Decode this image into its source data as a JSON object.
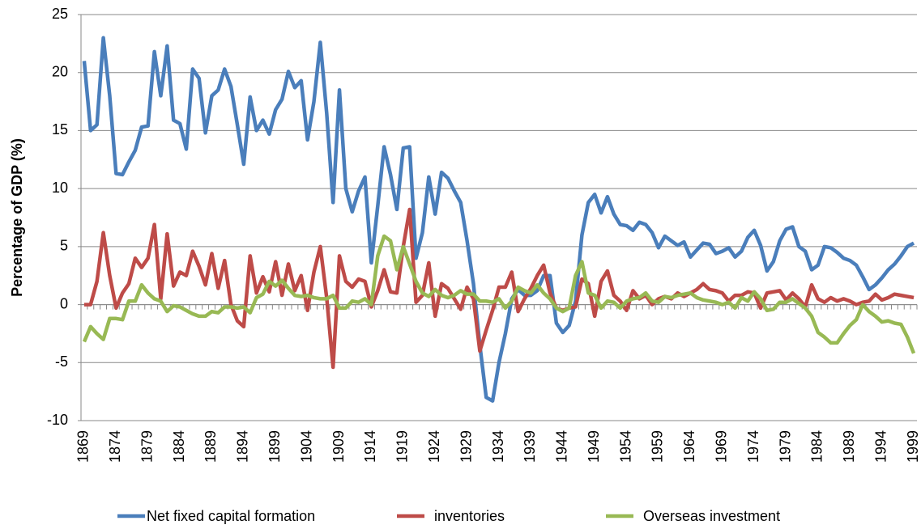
{
  "chart_data": {
    "type": "line",
    "y_label": "Percentage of GDP (%)",
    "categories": [
      "1869",
      null,
      null,
      null,
      null,
      "1874",
      null,
      null,
      null,
      null,
      "1879",
      null,
      null,
      null,
      null,
      "1884",
      null,
      null,
      null,
      null,
      "1889",
      null,
      null,
      null,
      null,
      "1894",
      null,
      null,
      null,
      null,
      "1899",
      null,
      null,
      null,
      null,
      "1904",
      null,
      null,
      null,
      null,
      "1909",
      null,
      null,
      null,
      null,
      "1914",
      null,
      null,
      null,
      null,
      "1919",
      null,
      null,
      null,
      null,
      "1924",
      null,
      null,
      null,
      null,
      "1929",
      null,
      null,
      null,
      null,
      "1934",
      null,
      null,
      null,
      null,
      "1939",
      null,
      null,
      null,
      null,
      "1944",
      null,
      null,
      null,
      null,
      "1949",
      null,
      null,
      null,
      null,
      "1954",
      null,
      null,
      null,
      null,
      "1959",
      null,
      null,
      null,
      null,
      "1964",
      null,
      null,
      null,
      null,
      "1969",
      null,
      null,
      null,
      null,
      "1974",
      null,
      null,
      null,
      null,
      "1979",
      null,
      null,
      null,
      null,
      "1984",
      null,
      null,
      null,
      null,
      "1989",
      null,
      null,
      null,
      null,
      "1994",
      null,
      null,
      null,
      null,
      "1999"
    ],
    "series": [
      {
        "name": "Net fixed capital formation",
        "color": "#4a7ebb",
        "values": [
          21,
          15,
          15.5,
          23,
          18,
          11.3,
          11.2,
          12.3,
          13.3,
          15.3,
          15.4,
          21.8,
          18,
          22.3,
          15.9,
          15.6,
          13.4,
          20.3,
          19.5,
          14.8,
          18,
          18.5,
          20.3,
          18.8,
          15.5,
          12.1,
          17.9,
          15,
          15.9,
          14.7,
          16.8,
          17.7,
          20.1,
          18.7,
          19.3,
          14.2,
          17.5,
          22.6,
          16.5,
          8.8,
          18.5,
          10,
          8,
          9.8,
          11,
          3.6,
          8.5,
          13.6,
          11.2,
          8.2,
          13.5,
          13.6,
          4,
          6.2,
          11,
          7.8,
          11.4,
          10.9,
          9.8,
          8.8,
          5.5,
          1.8,
          -3.5,
          -8,
          -8.3,
          -5,
          -2.5,
          0.5,
          1.3,
          0.8,
          0.8,
          1.2,
          2.5,
          2.5,
          -1.6,
          -2.4,
          -1.8,
          0.3,
          6,
          8.8,
          9.5,
          7.9,
          9.3,
          7.8,
          6.9,
          6.8,
          6.4,
          7.1,
          6.9,
          6.2,
          4.9,
          5.9,
          5.5,
          5.1,
          5.4,
          4.1,
          4.7,
          5.3,
          5.2,
          4.4,
          4.6,
          4.9,
          4.1,
          4.6,
          5.8,
          6.4,
          5.1,
          2.9,
          3.7,
          5.5,
          6.5,
          6.7,
          5,
          4.6,
          3,
          3.4,
          5,
          4.9,
          4.5,
          4,
          3.8,
          3.4,
          2.4,
          1.3,
          1.7,
          2.3,
          3,
          3.5,
          4.2,
          5,
          5.3
        ]
      },
      {
        "name": "inventories",
        "color": "#be4b48",
        "values": [
          0,
          0,
          2,
          6.2,
          2.5,
          -0.3,
          1,
          1.8,
          4,
          3.2,
          4,
          6.9,
          0.5,
          6.1,
          1.6,
          2.8,
          2.5,
          4.6,
          3.3,
          1.7,
          4.4,
          1.4,
          3.8,
          0,
          -1.4,
          -1.9,
          4.2,
          1,
          2.4,
          1.1,
          3.7,
          0.8,
          3.5,
          1.2,
          2.5,
          -0.5,
          2.8,
          5,
          0.6,
          -5.4,
          4.2,
          2,
          1.5,
          2.2,
          2,
          -0.2,
          1.2,
          3,
          1.1,
          1,
          5,
          8.2,
          0.2,
          0.8,
          3.6,
          -1,
          1.8,
          1.4,
          0.5,
          -0.4,
          1.5,
          0.5,
          -4,
          -2.2,
          -0.5,
          1.5,
          1.5,
          2.8,
          -0.6,
          0.5,
          1.4,
          2.5,
          3.4,
          1,
          -0.3,
          -0.5,
          -0.3,
          -0.2,
          2.2,
          1.8,
          -1,
          2,
          2.9,
          0.8,
          0.3,
          -0.5,
          1.2,
          0.5,
          0.8,
          0,
          0.5,
          0.7,
          0.5,
          1,
          0.7,
          1,
          1.3,
          1.8,
          1.3,
          1.2,
          1,
          0.3,
          0.8,
          0.8,
          1.1,
          1,
          -0.3,
          1,
          1.1,
          1.2,
          0.4,
          1,
          0.5,
          -0.2,
          1.7,
          0.5,
          0.2,
          0.6,
          0.3,
          0.5,
          0.3,
          0,
          0.2,
          0.3,
          0.9,
          0.4,
          0.6,
          0.9,
          0.8,
          0.7,
          0.6
        ]
      },
      {
        "name": "Overseas investment",
        "color": "#98b954",
        "values": [
          -3.2,
          -1.9,
          -2.5,
          -3,
          -1.2,
          -1.2,
          -1.3,
          0.3,
          0.3,
          1.7,
          1,
          0.5,
          0.3,
          -0.6,
          -0.1,
          -0.2,
          -0.5,
          -0.8,
          -1,
          -1,
          -0.6,
          -0.7,
          -0.2,
          -0.2,
          -0.3,
          -0.2,
          -0.7,
          0.6,
          0.9,
          2,
          1.6,
          2.1,
          1.4,
          0.8,
          0.7,
          0.8,
          0.6,
          0.5,
          0.5,
          0.8,
          -0.3,
          -0.3,
          0.3,
          0.2,
          0.5,
          0,
          4.2,
          5.9,
          5.5,
          3,
          5,
          3.5,
          2,
          1,
          0.7,
          1.3,
          0.8,
          0.6,
          0.8,
          1.2,
          0.9,
          0.9,
          0.3,
          0.3,
          0.2,
          0.5,
          -0.3,
          0.3,
          1.5,
          1.2,
          1,
          1.7,
          1,
          0.5,
          -0.3,
          -0.6,
          -0.3,
          2.5,
          3.7,
          1,
          0.8,
          -0.3,
          0.3,
          0.2,
          -0.3,
          0.3,
          0.5,
          0.6,
          1,
          0.3,
          0.2,
          0.7,
          0.6,
          0.8,
          0.9,
          1,
          0.6,
          0.4,
          0.3,
          0.2,
          0,
          0.2,
          -0.3,
          0.6,
          0.3,
          1.1,
          0.5,
          -0.5,
          -0.4,
          0.2,
          0.2,
          0.5,
          0.1,
          -0.3,
          -1,
          -2.4,
          -2.8,
          -3.3,
          -3.3,
          -2.5,
          -1.8,
          -1.3,
          0,
          -0.6,
          -1,
          -1.5,
          -1.4,
          -1.6,
          -1.7,
          -2.8,
          -4.2
        ]
      }
    ],
    "ylim": [
      -10,
      25
    ],
    "yticks": [
      -10,
      -5,
      0,
      5,
      10,
      15,
      20,
      25
    ],
    "grid": true
  }
}
